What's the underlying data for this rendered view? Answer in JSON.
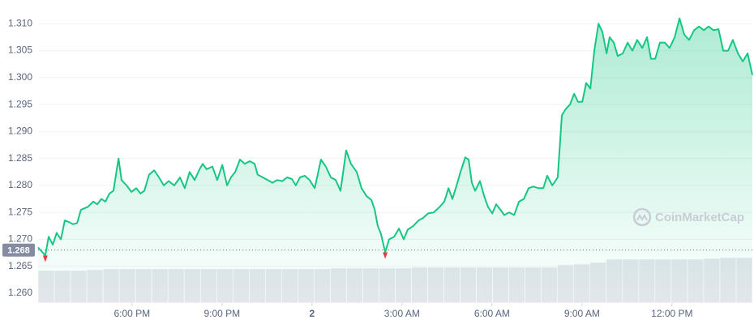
{
  "chart_data": {
    "type": "line",
    "x": [
      14.87,
      15.11,
      15.22,
      15.36,
      15.49,
      15.63,
      15.76,
      15.9,
      16.03,
      16.17,
      16.3,
      16.52,
      16.71,
      16.84,
      16.98,
      17.11,
      17.25,
      17.38,
      17.55,
      17.65,
      17.82,
      17.98,
      18.14,
      18.28,
      18.41,
      18.57,
      18.74,
      18.9,
      19.06,
      19.22,
      19.41,
      19.6,
      19.76,
      19.92,
      20.09,
      20.25,
      20.36,
      20.49,
      20.68,
      20.84,
      21.01,
      21.17,
      21.3,
      21.44,
      21.6,
      21.76,
      21.92,
      22.09,
      22.19,
      22.36,
      22.52,
      22.68,
      22.84,
      23.01,
      23.17,
      23.33,
      23.46,
      23.6,
      23.76,
      23.92,
      24.09,
      24.3,
      24.46,
      24.63,
      24.79,
      24.95,
      25.14,
      25.3,
      25.49,
      25.65,
      25.82,
      25.98,
      26.09,
      26.19,
      26.3,
      26.44,
      26.57,
      26.74,
      26.9,
      27.06,
      27.19,
      27.38,
      27.55,
      27.71,
      27.87,
      28.06,
      28.25,
      28.41,
      28.55,
      28.68,
      28.82,
      28.95,
      29.11,
      29.22,
      29.33,
      29.44,
      29.6,
      29.74,
      29.87,
      30.01,
      30.14,
      30.28,
      30.41,
      30.57,
      30.74,
      30.9,
      31.06,
      31.22,
      31.38,
      31.55,
      31.71,
      31.84,
      32.01,
      32.19,
      32.33,
      32.46,
      32.6,
      32.74,
      32.87,
      33.01,
      33.14,
      33.28,
      33.41,
      33.55,
      33.68,
      33.82,
      33.92,
      34.06,
      34.19,
      34.36,
      34.52,
      34.68,
      34.84,
      35.01,
      35.17,
      35.3,
      35.44,
      35.6,
      35.76,
      35.92,
      36.09,
      36.25,
      36.41,
      36.57,
      36.74,
      36.9,
      37.06,
      37.22,
      37.38,
      37.55,
      37.71,
      37.87,
      38.03,
      38.2,
      38.36,
      38.52,
      38.68
    ],
    "series": [
      {
        "color": "#16c784",
        "values": [
          1.2685,
          1.267,
          1.2705,
          1.269,
          1.2712,
          1.27,
          1.2735,
          1.2732,
          1.2728,
          1.273,
          1.2755,
          1.276,
          1.277,
          1.2765,
          1.2775,
          1.277,
          1.2785,
          1.279,
          1.285,
          1.281,
          1.28,
          1.2788,
          1.2795,
          1.2785,
          1.279,
          1.282,
          1.2828,
          1.2815,
          1.28,
          1.2808,
          1.28,
          1.2815,
          1.2795,
          1.2825,
          1.281,
          1.283,
          1.284,
          1.283,
          1.2835,
          1.281,
          1.2838,
          1.28,
          1.2815,
          1.2825,
          1.2848,
          1.284,
          1.2845,
          1.284,
          1.282,
          1.2815,
          1.281,
          1.2805,
          1.281,
          1.2808,
          1.2815,
          1.2812,
          1.28,
          1.2815,
          1.2818,
          1.281,
          1.2795,
          1.2848,
          1.2835,
          1.2815,
          1.281,
          1.279,
          1.2865,
          1.284,
          1.2825,
          1.2795,
          1.278,
          1.2773,
          1.2755,
          1.2725,
          1.271,
          1.2676,
          1.27,
          1.2705,
          1.272,
          1.27,
          1.2718,
          1.2725,
          1.2735,
          1.274,
          1.2748,
          1.275,
          1.276,
          1.277,
          1.2795,
          1.2775,
          1.28,
          1.2825,
          1.2852,
          1.2848,
          1.2805,
          1.279,
          1.2808,
          1.278,
          1.276,
          1.2748,
          1.2765,
          1.2755,
          1.2745,
          1.275,
          1.2745,
          1.277,
          1.2775,
          1.2795,
          1.2798,
          1.2795,
          1.2795,
          1.2818,
          1.28,
          1.2815,
          1.293,
          1.2942,
          1.295,
          1.297,
          1.2955,
          1.2955,
          1.299,
          1.298,
          1.305,
          1.31,
          1.3085,
          1.3045,
          1.3075,
          1.3065,
          1.304,
          1.3045,
          1.3065,
          1.305,
          1.307,
          1.3055,
          1.3075,
          1.3035,
          1.3035,
          1.3065,
          1.3065,
          1.3055,
          1.3075,
          1.311,
          1.308,
          1.307,
          1.3088,
          1.3095,
          1.3088,
          1.3095,
          1.3088,
          1.309,
          1.305,
          1.305,
          1.307,
          1.3045,
          1.303,
          1.3045,
          1.3005
        ]
      }
    ],
    "xlim": [
      14.87,
      38.68
    ],
    "xticks": [
      {
        "value": 18,
        "label": "6:00 PM"
      },
      {
        "value": 21,
        "label": "9:00 PM"
      },
      {
        "value": 24,
        "label": "2"
      },
      {
        "value": 27,
        "label": "3:00 AM"
      },
      {
        "value": 30,
        "label": "6:00 AM"
      },
      {
        "value": 33,
        "label": "9:00 AM"
      },
      {
        "value": 36,
        "label": "12:00 PM"
      }
    ],
    "ylim": [
      1.2582,
      1.3123
    ],
    "yticks": [
      {
        "value": 1.26,
        "label": "1.260"
      },
      {
        "value": 1.265,
        "label": "1.265"
      },
      {
        "value": 1.27,
        "label": "1.270"
      },
      {
        "value": 1.275,
        "label": "1.275"
      },
      {
        "value": 1.28,
        "label": "1.280"
      },
      {
        "value": 1.285,
        "label": "1.285"
      },
      {
        "value": 1.29,
        "label": "1.290"
      },
      {
        "value": 1.295,
        "label": "1.295"
      },
      {
        "value": 1.3,
        "label": "1.300"
      },
      {
        "value": 1.305,
        "label": "1.305"
      },
      {
        "value": 1.31,
        "label": "1.310"
      }
    ],
    "grid": true,
    "reference_value": 1.268,
    "volume": {
      "color": "#e3e6ec",
      "values": [
        40,
        40,
        40,
        41,
        42,
        42,
        42,
        42,
        42,
        42,
        42,
        42,
        42,
        42,
        42,
        42,
        42,
        42,
        43,
        43,
        43,
        43,
        43,
        44,
        44,
        44,
        44,
        44,
        44,
        44,
        44,
        44,
        47,
        48,
        50,
        54,
        54,
        54,
        54,
        54,
        54,
        55,
        56,
        56
      ]
    },
    "watermark": "CoinMarketCap"
  }
}
